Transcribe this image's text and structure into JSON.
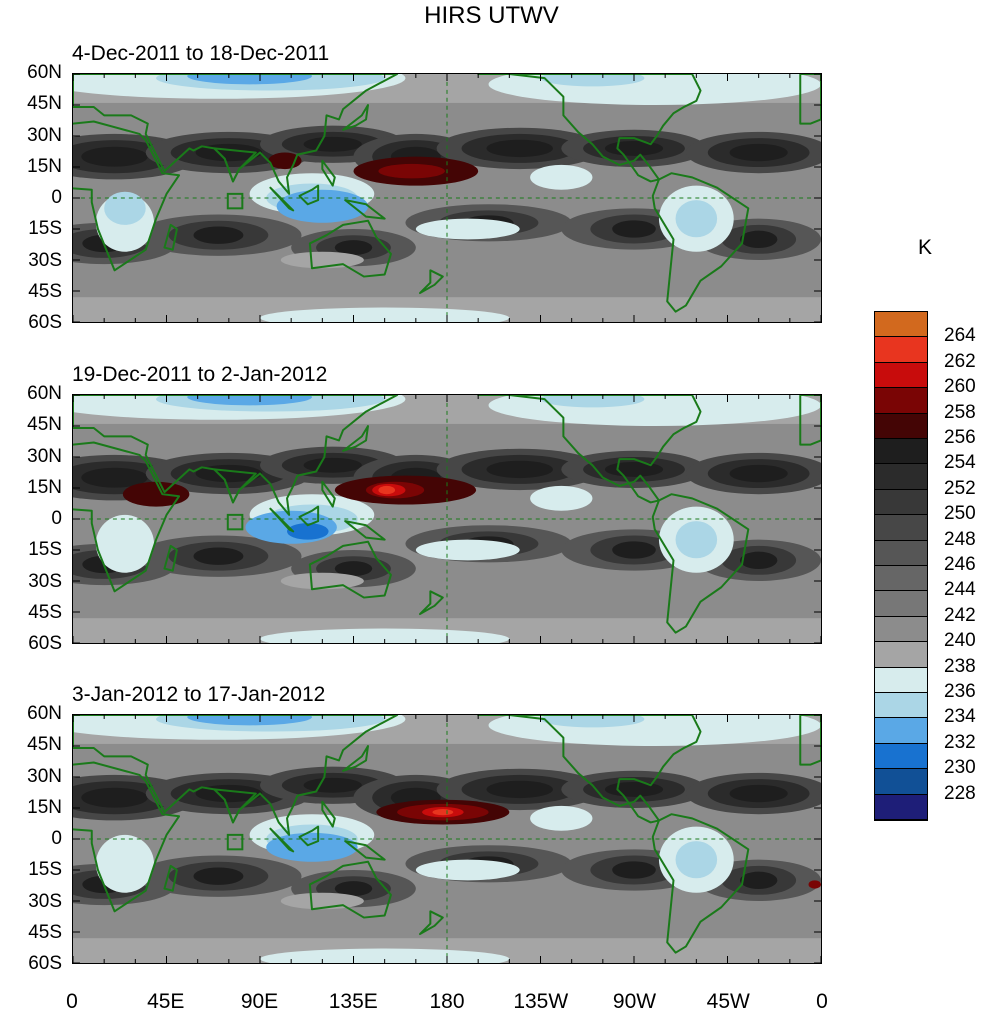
{
  "title": "HIRS UTWV",
  "panels": [
    {
      "title": "4-Dec-2011 to 18-Dec-2011"
    },
    {
      "title": "19-Dec-2011 to 2-Jan-2012"
    },
    {
      "title": "3-Jan-2012 to 17-Jan-2012"
    }
  ],
  "lat_labels": [
    "60N",
    "45N",
    "30N",
    "15N",
    "0",
    "15S",
    "30S",
    "45S",
    "60S"
  ],
  "lon_labels": [
    "0",
    "45E",
    "90E",
    "135E",
    "180",
    "135W",
    "90W",
    "45W",
    "0"
  ],
  "map_extent": {
    "lon": [
      0,
      360
    ],
    "lat": [
      -60,
      60
    ]
  },
  "colorbar": {
    "unit": "K",
    "levels": [
      "264",
      "262",
      "260",
      "258",
      "256",
      "254",
      "252",
      "250",
      "248",
      "246",
      "244",
      "242",
      "240",
      "238",
      "236",
      "234",
      "232",
      "230",
      "228"
    ],
    "colors": [
      "#d2691e",
      "#e8351f",
      "#c80c0c",
      "#7a0505",
      "#440505",
      "#1e1e1e",
      "#2b2b2b",
      "#383838",
      "#474747",
      "#565656",
      "#666666",
      "#777777",
      "#8c8c8c",
      "#a5a5a5",
      "#d7eced",
      "#abd6e6",
      "#5aa8e6",
      "#1872d0",
      "#115096",
      "#1e1e78"
    ]
  },
  "coastline_color": "#1a7a1a"
}
